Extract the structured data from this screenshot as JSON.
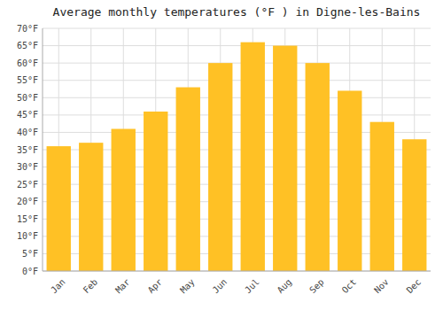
{
  "chart_data": {
    "type": "bar",
    "title": "Average monthly temperatures (°F ) in Digne-les-Bains",
    "categories": [
      "Jan",
      "Feb",
      "Mar",
      "Apr",
      "May",
      "Jun",
      "Jul",
      "Aug",
      "Sep",
      "Oct",
      "Nov",
      "Dec"
    ],
    "values": [
      36,
      37,
      41,
      46,
      53,
      60,
      66,
      65,
      60,
      52,
      43,
      38
    ],
    "color": "#FFC125",
    "ylim": [
      0,
      70
    ],
    "yticks": [
      {
        "value": 0,
        "label": "0°F"
      },
      {
        "value": 5,
        "label": "5°F"
      },
      {
        "value": 10,
        "label": "10°F"
      },
      {
        "value": 15,
        "label": "15°F"
      },
      {
        "value": 20,
        "label": "20°F"
      },
      {
        "value": 25,
        "label": "25°F"
      },
      {
        "value": 30,
        "label": "30°F"
      },
      {
        "value": 35,
        "label": "35°F"
      },
      {
        "value": 40,
        "label": "40°F"
      },
      {
        "value": 45,
        "label": "45°F"
      },
      {
        "value": 50,
        "label": "50°F"
      },
      {
        "value": 55,
        "label": "55°F"
      },
      {
        "value": 60,
        "label": "60°F"
      },
      {
        "value": 65,
        "label": "65°F"
      },
      {
        "value": 70,
        "label": "70°F"
      }
    ],
    "grid": true
  }
}
